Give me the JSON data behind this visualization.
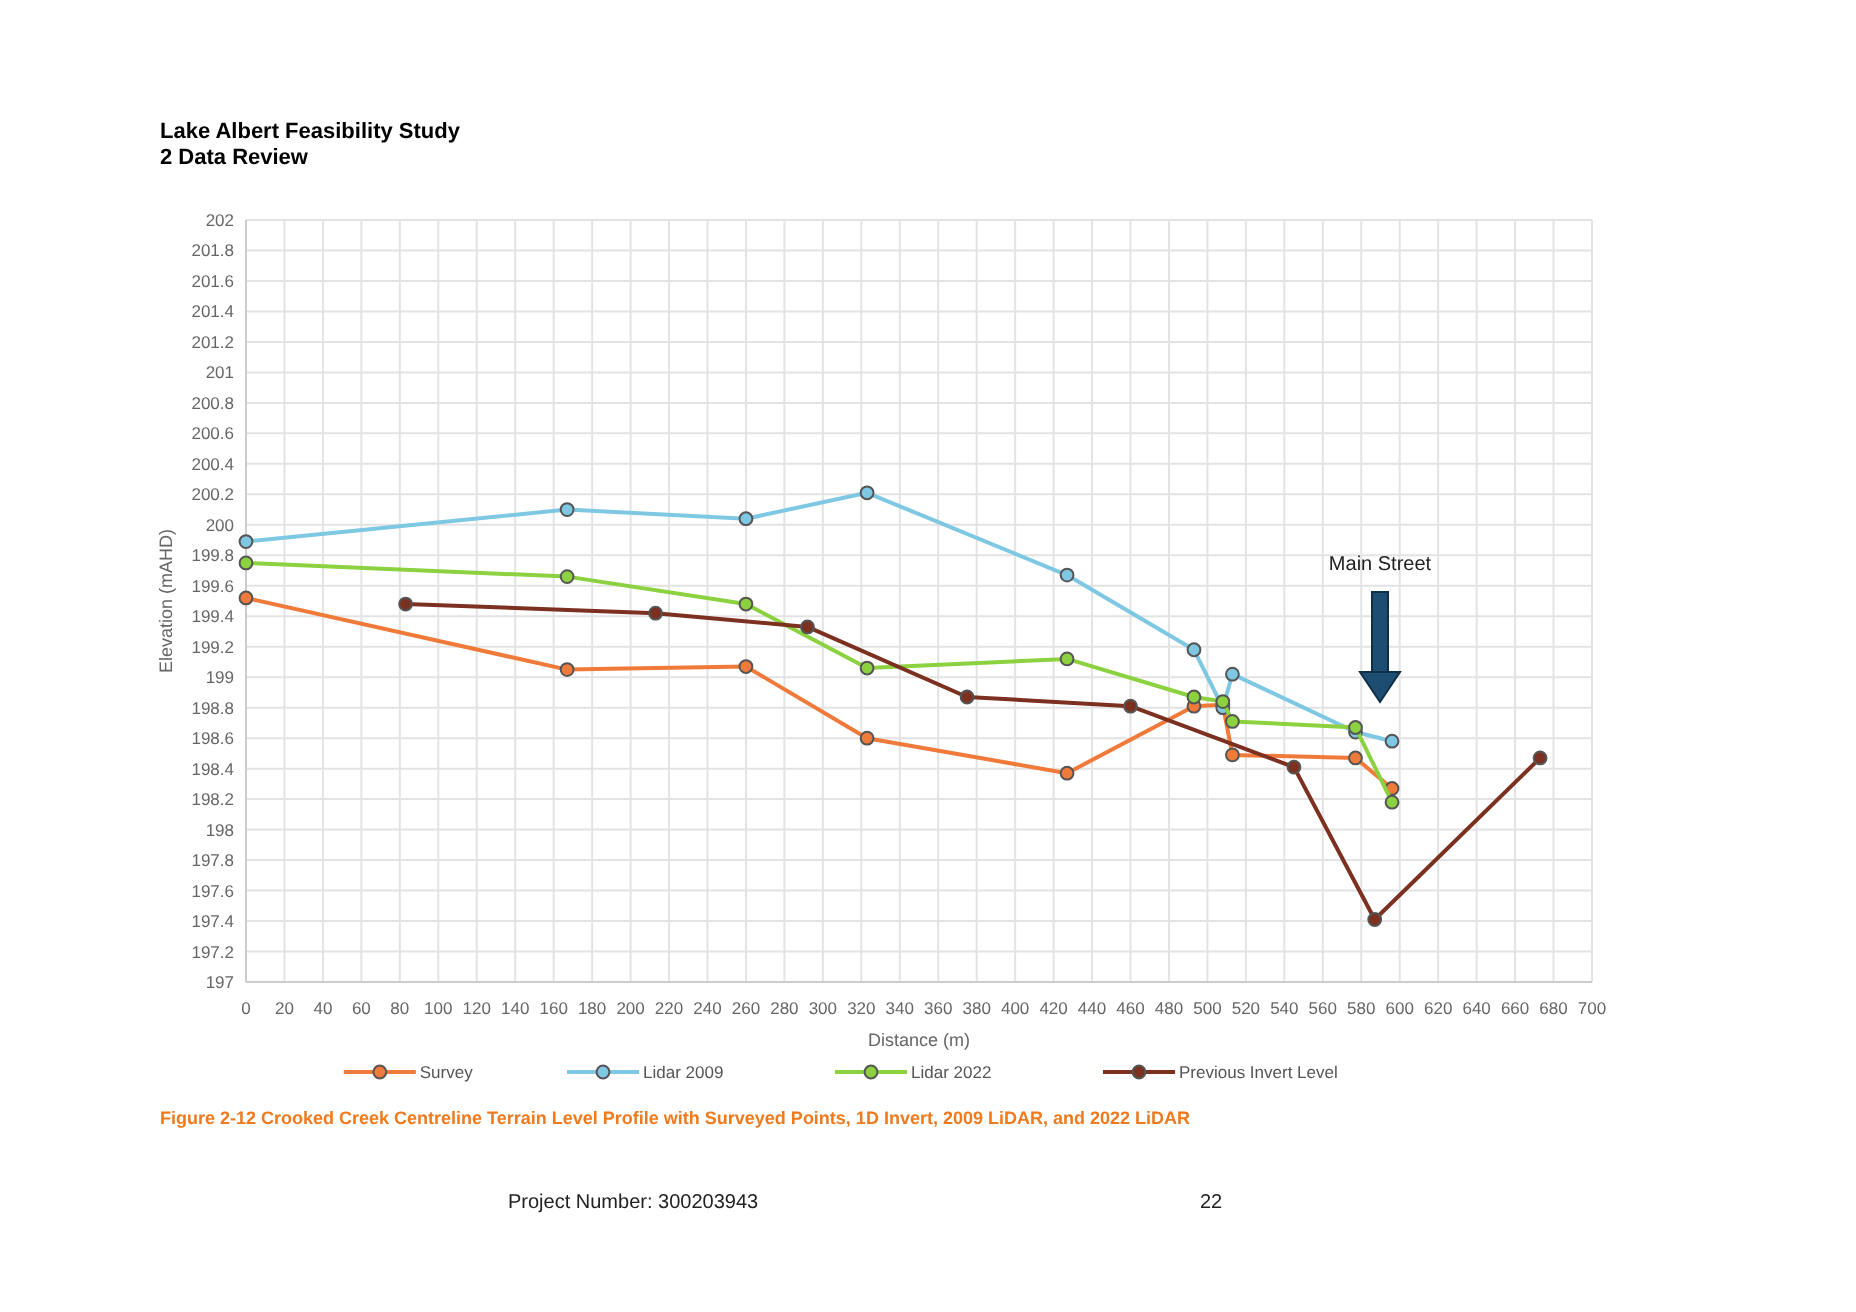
{
  "chart_data": {
    "type": "line",
    "title": "Lake Albert Feasibility Study",
    "subtitle": "2 Data Review",
    "xlabel": "Distance (m)",
    "ylabel": "Elevation (mAHD)",
    "series": [
      {
        "name": "Survey",
        "color": "#f07a3a",
        "x": [
          0,
          167,
          260,
          323,
          427,
          493,
          508,
          513,
          577,
          596
        ],
        "values": [
          199.52,
          199.05,
          199.07,
          198.6,
          198.37,
          198.81,
          198.82,
          198.49,
          198.47,
          198.27
        ]
      },
      {
        "name": "Lidar 2009",
        "color": "#7ec8e3",
        "x": [
          0,
          167,
          260,
          323,
          427,
          493,
          508,
          513,
          577,
          596
        ],
        "values": [
          199.89,
          200.1,
          200.04,
          200.21,
          199.67,
          199.18,
          198.8,
          199.02,
          198.64,
          198.58
        ]
      },
      {
        "name": "Lidar 2022",
        "color": "#8cd13f",
        "x": [
          0,
          167,
          260,
          323,
          427,
          493,
          508,
          513,
          577,
          596
        ],
        "values": [
          199.75,
          199.66,
          199.48,
          199.06,
          199.12,
          198.87,
          198.84,
          198.71,
          198.67,
          198.18
        ]
      },
      {
        "name": "Previous Invert Level",
        "color": "#7b3020",
        "x": [
          83,
          213,
          292,
          375,
          460,
          545,
          587,
          673
        ],
        "values": [
          199.48,
          199.42,
          199.33,
          198.87,
          198.81,
          198.41,
          197.41,
          198.47
        ]
      }
    ],
    "xlim": [
      0,
      700
    ],
    "xticks": [
      0,
      20,
      40,
      60,
      80,
      100,
      120,
      140,
      160,
      180,
      200,
      220,
      240,
      260,
      280,
      300,
      320,
      340,
      360,
      380,
      400,
      420,
      440,
      460,
      480,
      500,
      520,
      540,
      560,
      580,
      600,
      620,
      640,
      660,
      680,
      700
    ],
    "ylim": [
      197,
      202
    ],
    "yticks": [
      197,
      197.2,
      197.4,
      197.6,
      197.8,
      198,
      198.2,
      198.4,
      198.6,
      198.8,
      199,
      199.2,
      199.4,
      199.6,
      199.8,
      200,
      200.2,
      200.4,
      200.6,
      200.8,
      201,
      201.2,
      201.4,
      201.6,
      201.8,
      202
    ],
    "grid": true,
    "legend": "bottom",
    "marker": "circle",
    "line_style": "solid",
    "annotations": [
      "Main Street",
      "Figure 2-12 Crooked Creek Centreline Terrain Level Profile with Surveyed Points, 1D Invert, 2009 LiDAR, and 2022 LiDAR",
      "Project Number: 300203943",
      "22"
    ]
  }
}
